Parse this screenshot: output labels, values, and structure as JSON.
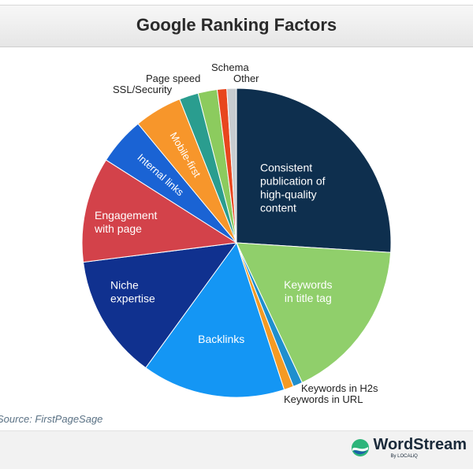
{
  "chart_data": {
    "type": "pie",
    "title": "Google Ranking Factors",
    "slices": [
      {
        "label": "Consistent publication of high-quality content",
        "value": 26,
        "color": "#0e2f4e"
      },
      {
        "label": "Keywords in title tag",
        "value": 17,
        "color": "#90cf6b"
      },
      {
        "label": "Keywords in H2s",
        "value": 1,
        "color": "#1f8fce"
      },
      {
        "label": "Keywords in URL",
        "value": 1,
        "color": "#f59a23"
      },
      {
        "label": "Backlinks",
        "value": 15,
        "color": "#1496f4"
      },
      {
        "label": "Niche expertise",
        "value": 13,
        "color": "#10318f"
      },
      {
        "label": "Engagement with page",
        "value": 11,
        "color": "#d3424a"
      },
      {
        "label": "Internal links",
        "value": 5,
        "color": "#1a63d4"
      },
      {
        "label": "Mobile-first",
        "value": 5,
        "color": "#f7962b"
      },
      {
        "label": "SSL/Security",
        "value": 2,
        "color": "#2a9d8f"
      },
      {
        "label": "Page speed",
        "value": 2,
        "color": "#8ccb5e"
      },
      {
        "label": "Schema",
        "value": 1,
        "color": "#e8461e"
      },
      {
        "label": "Other",
        "value": 1,
        "color": "#c8ccd0"
      }
    ]
  },
  "source": "Source: FirstPageSage",
  "brand": {
    "name": "WordStream",
    "sub": "By LOCALiQ"
  }
}
